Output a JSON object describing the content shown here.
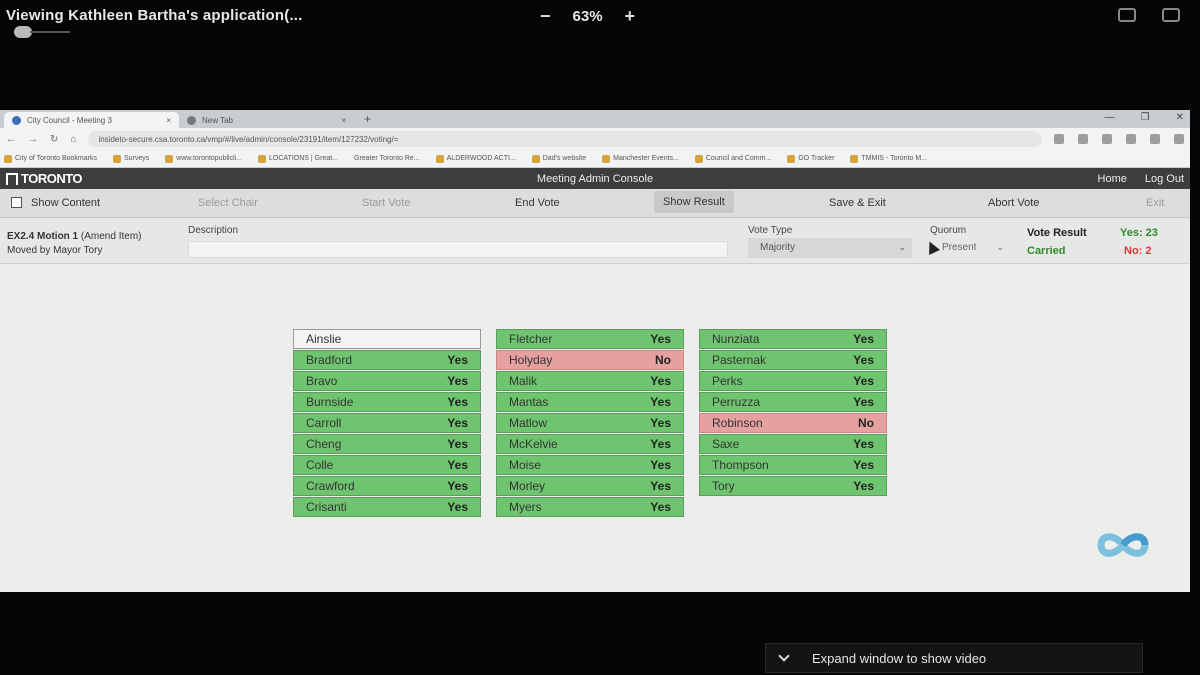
{
  "share": {
    "title": "Viewing Kathleen Bartha's application(...",
    "zoom_out": "−",
    "zoom_level": "63%",
    "zoom_in": "+"
  },
  "browser": {
    "tabs": [
      {
        "label": "City Council - Meeting 3",
        "close": "×"
      },
      {
        "label": "New Tab",
        "close": "×"
      }
    ],
    "new_tab": "+",
    "win_min": "—",
    "win_max": "❐",
    "win_close": "✕",
    "url": "insideto-secure.csa.toronto.ca/vmp/#/live/admin/console/23191/item/127232/voting/=",
    "bookmarks": [
      "City of Toronto Bookmarks",
      "Surveys",
      "www.torontopublicli...",
      "LOCATIONS | Great...",
      "Greater Toronto Re...",
      "ALDERWOOD ACTI...",
      "Dad's website",
      "Manchester Events...",
      "Council and Comm...",
      "GO Tracker",
      "TMMIS - Toronto M..."
    ]
  },
  "app": {
    "logo": "TORONTO",
    "title": "Meeting Admin Console",
    "nav": {
      "home": "Home",
      "logout": "Log Out"
    },
    "actions": {
      "show_content": "Show Content",
      "select_chair": "Select Chair",
      "start_vote": "Start Vote",
      "end_vote": "End Vote",
      "show_result": "Show Result",
      "save_exit": "Save & Exit",
      "abort_vote": "Abort Vote",
      "exit": "Exit"
    },
    "motion": {
      "id": "EX2.4 Motion 1",
      "type": "(Amend Item)",
      "moved_by": "Moved by Mayor Tory"
    },
    "description_label": "Description",
    "description_value": "",
    "vote_type_label": "Vote Type",
    "vote_type_value": "Majority",
    "quorum_label": "Quorum",
    "quorum_value": "Present",
    "vote_result_label": "Vote Result",
    "vote_result_status": "Carried",
    "yes_count": "Yes: 23",
    "no_count": "No: 2"
  },
  "voters": [
    [
      {
        "name": "Ainslie",
        "vote": ""
      },
      {
        "name": "Bradford",
        "vote": "Yes"
      },
      {
        "name": "Bravo",
        "vote": "Yes"
      },
      {
        "name": "Burnside",
        "vote": "Yes"
      },
      {
        "name": "Carroll",
        "vote": "Yes"
      },
      {
        "name": "Cheng",
        "vote": "Yes"
      },
      {
        "name": "Colle",
        "vote": "Yes"
      },
      {
        "name": "Crawford",
        "vote": "Yes"
      },
      {
        "name": "Crisanti",
        "vote": "Yes"
      }
    ],
    [
      {
        "name": "Fletcher",
        "vote": "Yes"
      },
      {
        "name": "Holyday",
        "vote": "No"
      },
      {
        "name": "Malik",
        "vote": "Yes"
      },
      {
        "name": "Mantas",
        "vote": "Yes"
      },
      {
        "name": "Matlow",
        "vote": "Yes"
      },
      {
        "name": "McKelvie",
        "vote": "Yes"
      },
      {
        "name": "Moise",
        "vote": "Yes"
      },
      {
        "name": "Morley",
        "vote": "Yes"
      },
      {
        "name": "Myers",
        "vote": "Yes"
      }
    ],
    [
      {
        "name": "Nunziata",
        "vote": "Yes"
      },
      {
        "name": "Pasternak",
        "vote": "Yes"
      },
      {
        "name": "Perks",
        "vote": "Yes"
      },
      {
        "name": "Perruzza",
        "vote": "Yes"
      },
      {
        "name": "Robinson",
        "vote": "No"
      },
      {
        "name": "Saxe",
        "vote": "Yes"
      },
      {
        "name": "Thompson",
        "vote": "Yes"
      },
      {
        "name": "Tory",
        "vote": "Yes"
      }
    ]
  ],
  "colors": {
    "yes": "#6fc56f",
    "no": "#e7a0a0",
    "none": "#f4f4f4",
    "carried": "#2e8b2e",
    "no_text": "#d33333"
  },
  "expand_bar": {
    "label": "Expand window to show video"
  }
}
